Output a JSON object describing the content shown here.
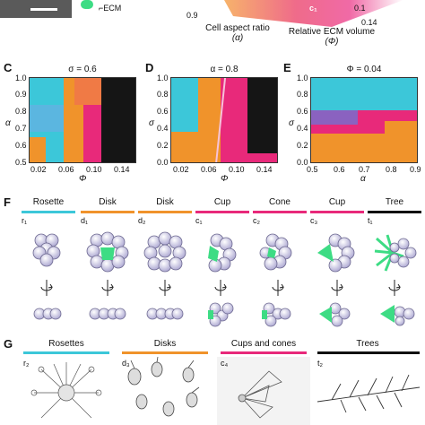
{
  "colors": {
    "rosette": "#3cc7d9",
    "disk": "#f0932b",
    "cup": "#e8297a",
    "cone": "#e8297a",
    "tree": "#111111",
    "ecm": "#3ddc84"
  },
  "top": {
    "ecm_label": "ECM",
    "aspect_ratio_label": "Cell aspect ratio",
    "aspect_ratio_symbol": "(α)",
    "ecm_volume_label": "Relative ECM volume",
    "ecm_volume_symbol": "(Φ)",
    "axis_tick_09": "0.9",
    "axis_tick_014": "0.14",
    "axis_tick_01": "0.1",
    "corner_label": "c₁"
  },
  "panel_c": {
    "letter": "C",
    "title": "σ = 0.6",
    "xlabel": "Φ",
    "ylabel": "α",
    "xticks": [
      "0.02",
      "0.06",
      "0.10",
      "0.14"
    ],
    "yticks": [
      "1.0",
      "0.9",
      "0.8",
      "0.7",
      "0.6",
      "0.5"
    ]
  },
  "panel_d": {
    "letter": "D",
    "title": "α = 0.8",
    "xlabel": "Φ",
    "ylabel": "σ",
    "xticks": [
      "0.02",
      "0.06",
      "0.10",
      "0.14"
    ],
    "yticks": [
      "1.0",
      "0.8",
      "0.6",
      "0.4",
      "0.2",
      "0.0"
    ]
  },
  "panel_e": {
    "letter": "E",
    "title": "Φ = 0.04",
    "xlabel": "α",
    "ylabel": "σ",
    "xticks": [
      "0.5",
      "0.6",
      "0.7",
      "0.8",
      "0.9"
    ],
    "yticks": [
      "1.0",
      "0.8",
      "0.6",
      "0.4",
      "0.2",
      "0.0"
    ]
  },
  "panel_f": {
    "letter": "F",
    "shapes": [
      {
        "name": "Rosette",
        "sub": "r₁"
      },
      {
        "name": "Disk",
        "sub": "d₁"
      },
      {
        "name": "Disk",
        "sub": "d₂"
      },
      {
        "name": "Cup",
        "sub": "c₁"
      },
      {
        "name": "Cone",
        "sub": "c₂"
      },
      {
        "name": "Cup",
        "sub": "c₃"
      },
      {
        "name": "Tree",
        "sub": "t₁"
      }
    ]
  },
  "panel_g": {
    "letter": "G",
    "groups": [
      {
        "name": "Rosettes",
        "sub": "r₂"
      },
      {
        "name": "Disks",
        "sub": "d₃"
      },
      {
        "name": "Cups and cones",
        "sub": "c₄"
      },
      {
        "name": "Trees",
        "sub": "t₂"
      }
    ]
  }
}
